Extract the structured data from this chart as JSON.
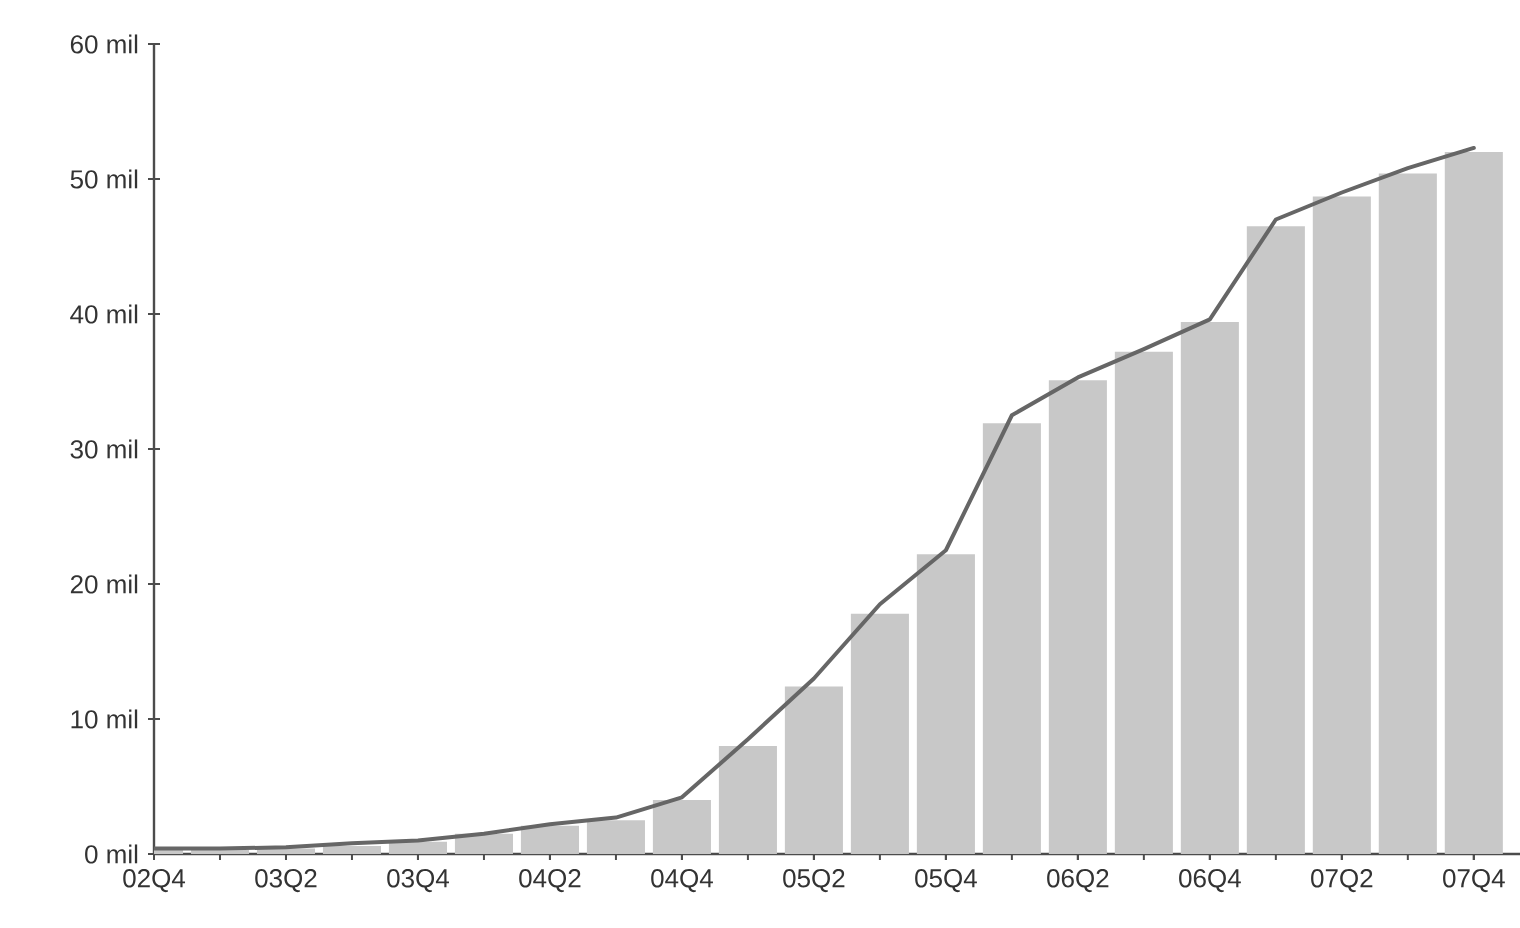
{
  "chart_data": {
    "type": "bar",
    "categories": [
      "02Q4",
      null,
      "03Q2",
      null,
      "03Q4",
      null,
      "04Q2",
      null,
      "04Q4",
      null,
      "05Q2",
      null,
      "05Q4",
      null,
      "06Q2",
      null,
      "06Q4",
      null,
      "07Q2",
      null,
      "07Q4"
    ],
    "series": [
      {
        "color": "#c8c8c8",
        "values": [
          0.3,
          0.3,
          0.4,
          0.6,
          0.9,
          1.5,
          2.1,
          2.5,
          4.0,
          8.0,
          12.4,
          17.8,
          22.2,
          31.9,
          35.1,
          37.2,
          39.4,
          46.5,
          48.7,
          50.4,
          52.0
        ]
      },
      {
        "type": "line",
        "color": "#666666",
        "values": [
          0.4,
          0.4,
          0.5,
          0.8,
          1.0,
          1.5,
          2.2,
          2.7,
          4.2,
          8.5,
          13.0,
          18.5,
          22.5,
          32.5,
          35.3,
          37.4,
          39.6,
          47.0,
          49.0,
          50.8,
          52.3
        ]
      }
    ],
    "ylim": [
      0,
      60
    ],
    "yticks": [
      {
        "value": 0,
        "label": "0 mil"
      },
      {
        "value": 10,
        "label": "10 mil"
      },
      {
        "value": 20,
        "label": "20 mil"
      },
      {
        "value": 30,
        "label": "30 mil"
      },
      {
        "value": 40,
        "label": "40 mil"
      },
      {
        "value": 50,
        "label": "50 mil"
      },
      {
        "value": 60,
        "label": "60 mil"
      }
    ],
    "grid": false,
    "marker": "none",
    "line_style": "solid"
  }
}
